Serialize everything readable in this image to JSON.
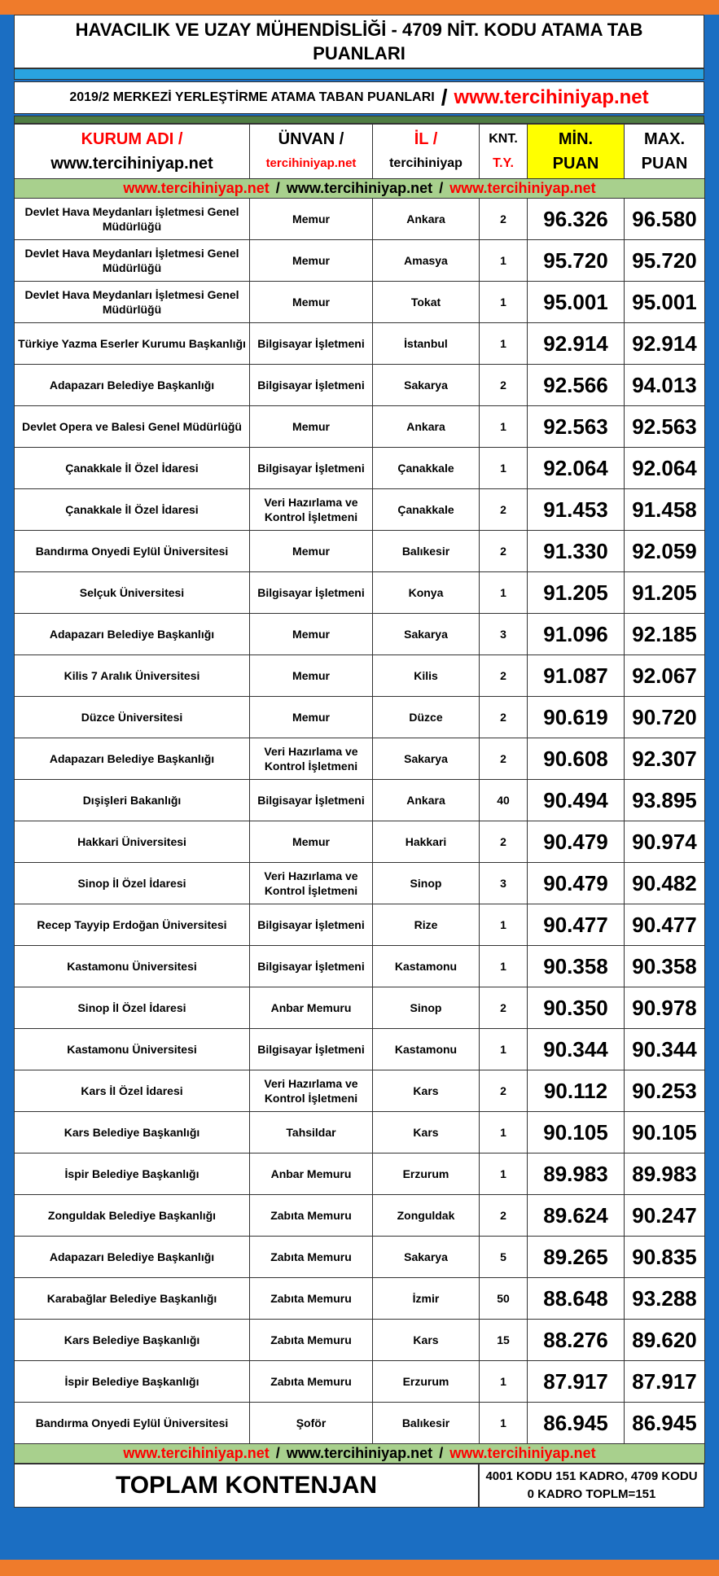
{
  "header": {
    "title": "HAVACILIK VE UZAY MÜHENDİSLİĞİ - 4709 NİT. KODU ATAMA TAB PUANLARI",
    "subtitle": "2019/2 MERKEZİ YERLEŞTİRME ATAMA TABAN PUANLARI",
    "subtitle_sep": "/",
    "subtitle_url": "www.tercihiniyap.net"
  },
  "table": {
    "columns": [
      [
        "KURUM ADI /",
        "www.tercihiniyap.net"
      ],
      [
        "ÜNVAN /",
        "tercihiniyap.net"
      ],
      [
        "İL /",
        "tercihiniyap"
      ],
      [
        "KNT.",
        "T.Y."
      ],
      [
        "MİN.",
        "PUAN"
      ],
      [
        "MAX.",
        "PUAN"
      ]
    ],
    "url_row_top": [
      "www.tercihiniyap.net",
      "/",
      "www.tercihiniyap.net",
      "/",
      "www.tercihiniyap.net"
    ],
    "rows": [
      [
        "Devlet Hava Meydanları İşletmesi Genel Müdürlüğü",
        "Memur",
        "Ankara",
        "2",
        "96.326",
        "96.580"
      ],
      [
        "Devlet Hava Meydanları İşletmesi Genel Müdürlüğü",
        "Memur",
        "Amasya",
        "1",
        "95.720",
        "95.720"
      ],
      [
        "Devlet Hava Meydanları İşletmesi Genel Müdürlüğü",
        "Memur",
        "Tokat",
        "1",
        "95.001",
        "95.001"
      ],
      [
        "Türkiye Yazma Eserler Kurumu Başkanlığı",
        "Bilgisayar İşletmeni",
        "İstanbul",
        "1",
        "92.914",
        "92.914"
      ],
      [
        "Adapazarı Belediye Başkanlığı",
        "Bilgisayar İşletmeni",
        "Sakarya",
        "2",
        "92.566",
        "94.013"
      ],
      [
        "Devlet Opera ve Balesi Genel Müdürlüğü",
        "Memur",
        "Ankara",
        "1",
        "92.563",
        "92.563"
      ],
      [
        "Çanakkale İl Özel İdaresi",
        "Bilgisayar İşletmeni",
        "Çanakkale",
        "1",
        "92.064",
        "92.064"
      ],
      [
        "Çanakkale İl Özel İdaresi",
        "Veri Hazırlama ve Kontrol İşletmeni",
        "Çanakkale",
        "2",
        "91.453",
        "91.458"
      ],
      [
        "Bandırma Onyedi Eylül Üniversitesi",
        "Memur",
        "Balıkesir",
        "2",
        "91.330",
        "92.059"
      ],
      [
        "Selçuk Üniversitesi",
        "Bilgisayar İşletmeni",
        "Konya",
        "1",
        "91.205",
        "91.205"
      ],
      [
        "Adapazarı Belediye Başkanlığı",
        "Memur",
        "Sakarya",
        "3",
        "91.096",
        "92.185"
      ],
      [
        "Kilis 7 Aralık Üniversitesi",
        "Memur",
        "Kilis",
        "2",
        "91.087",
        "92.067"
      ],
      [
        "Düzce Üniversitesi",
        "Memur",
        "Düzce",
        "2",
        "90.619",
        "90.720"
      ],
      [
        "Adapazarı Belediye Başkanlığı",
        "Veri Hazırlama ve Kontrol İşletmeni",
        "Sakarya",
        "2",
        "90.608",
        "92.307"
      ],
      [
        "Dışişleri Bakanlığı",
        "Bilgisayar İşletmeni",
        "Ankara",
        "40",
        "90.494",
        "93.895"
      ],
      [
        "Hakkari Üniversitesi",
        "Memur",
        "Hakkari",
        "2",
        "90.479",
        "90.974"
      ],
      [
        "Sinop İl Özel İdaresi",
        "Veri Hazırlama ve Kontrol İşletmeni",
        "Sinop",
        "3",
        "90.479",
        "90.482"
      ],
      [
        "Recep Tayyip Erdoğan Üniversitesi",
        "Bilgisayar İşletmeni",
        "Rize",
        "1",
        "90.477",
        "90.477"
      ],
      [
        "Kastamonu Üniversitesi",
        "Bilgisayar İşletmeni",
        "Kastamonu",
        "1",
        "90.358",
        "90.358"
      ],
      [
        "Sinop İl Özel İdaresi",
        "Anbar Memuru",
        "Sinop",
        "2",
        "90.350",
        "90.978"
      ],
      [
        "Kastamonu Üniversitesi",
        "Bilgisayar İşletmeni",
        "Kastamonu",
        "1",
        "90.344",
        "90.344"
      ],
      [
        "Kars İl Özel İdaresi",
        "Veri Hazırlama ve Kontrol İşletmeni",
        "Kars",
        "2",
        "90.112",
        "90.253"
      ],
      [
        "Kars Belediye Başkanlığı",
        "Tahsildar",
        "Kars",
        "1",
        "90.105",
        "90.105"
      ],
      [
        "İspir Belediye Başkanlığı",
        "Anbar Memuru",
        "Erzurum",
        "1",
        "89.983",
        "89.983"
      ],
      [
        "Zonguldak Belediye Başkanlığı",
        "Zabıta Memuru",
        "Zonguldak",
        "2",
        "89.624",
        "90.247"
      ],
      [
        "Adapazarı Belediye Başkanlığı",
        "Zabıta Memuru",
        "Sakarya",
        "5",
        "89.265",
        "90.835"
      ],
      [
        "Karabağlar Belediye Başkanlığı",
        "Zabıta Memuru",
        "İzmir",
        "50",
        "88.648",
        "93.288"
      ],
      [
        "Kars Belediye Başkanlığı",
        "Zabıta Memuru",
        "Kars",
        "15",
        "88.276",
        "89.620"
      ],
      [
        "İspir Belediye Başkanlığı",
        "Zabıta Memuru",
        "Erzurum",
        "1",
        "87.917",
        "87.917"
      ],
      [
        "Bandırma Onyedi Eylül Üniversitesi",
        "Şoför",
        "Balıkesir",
        "1",
        "86.945",
        "86.945"
      ]
    ],
    "url_row_bottom": [
      "www.tercihiniyap.net",
      "/",
      "www.tercihiniyap.net",
      "/",
      "www.tercihiniyap.net"
    ]
  },
  "footer": {
    "label": "TOPLAM KONTENJAN",
    "note": "4001 KODU 151 KADRO, 4709 KODU 0 KADRO TOPLM=151"
  }
}
